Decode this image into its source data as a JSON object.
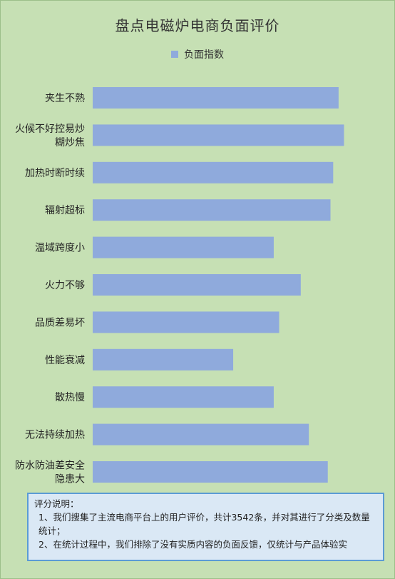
{
  "chart_data": {
    "type": "bar",
    "orientation": "horizontal",
    "title": "盘点电磁炉电商负面评价",
    "legend_position": "top",
    "grid": false,
    "xlim": [
      0,
      100
    ],
    "categories": [
      "夹生不熟",
      "火候不好控易炒糊炒焦",
      "加热时断时续",
      "辐射超标",
      "温域跨度小",
      "火力不够",
      "品质差易坏",
      "性能衰减",
      "散热慢",
      "无法持续加热",
      "防水防油差安全隐患大"
    ],
    "category_lines": [
      [
        "夹生不熟"
      ],
      [
        "火候不好控易炒",
        "糊炒焦"
      ],
      [
        "加热时断时续"
      ],
      [
        "辐射超标"
      ],
      [
        "温域跨度小"
      ],
      [
        "火力不够"
      ],
      [
        "品质差易坏"
      ],
      [
        "性能衰减"
      ],
      [
        "散热慢"
      ],
      [
        "无法持续加热"
      ],
      [
        "防水防油差安全",
        "隐患大"
      ]
    ],
    "series": [
      {
        "name": "负面指数",
        "color": "#8faadc",
        "values": [
          91,
          93,
          89,
          88,
          67,
          77,
          69,
          52,
          67,
          80,
          87
        ]
      }
    ]
  },
  "note": {
    "heading": "评分说明：",
    "line1": "1、我们搜集了主流电商平台上的用户评价，共计3542条，并对其进行了分类及数量统计；",
    "line2": "2、在统计过程中，我们排除了没有实质内容的负面反馈，仅统计与产品体验实"
  },
  "colors": {
    "background": "#c6e0b4",
    "bar": "#8faadc",
    "note_background": "#dae8f5",
    "note_border": "#5b9bd5"
  }
}
